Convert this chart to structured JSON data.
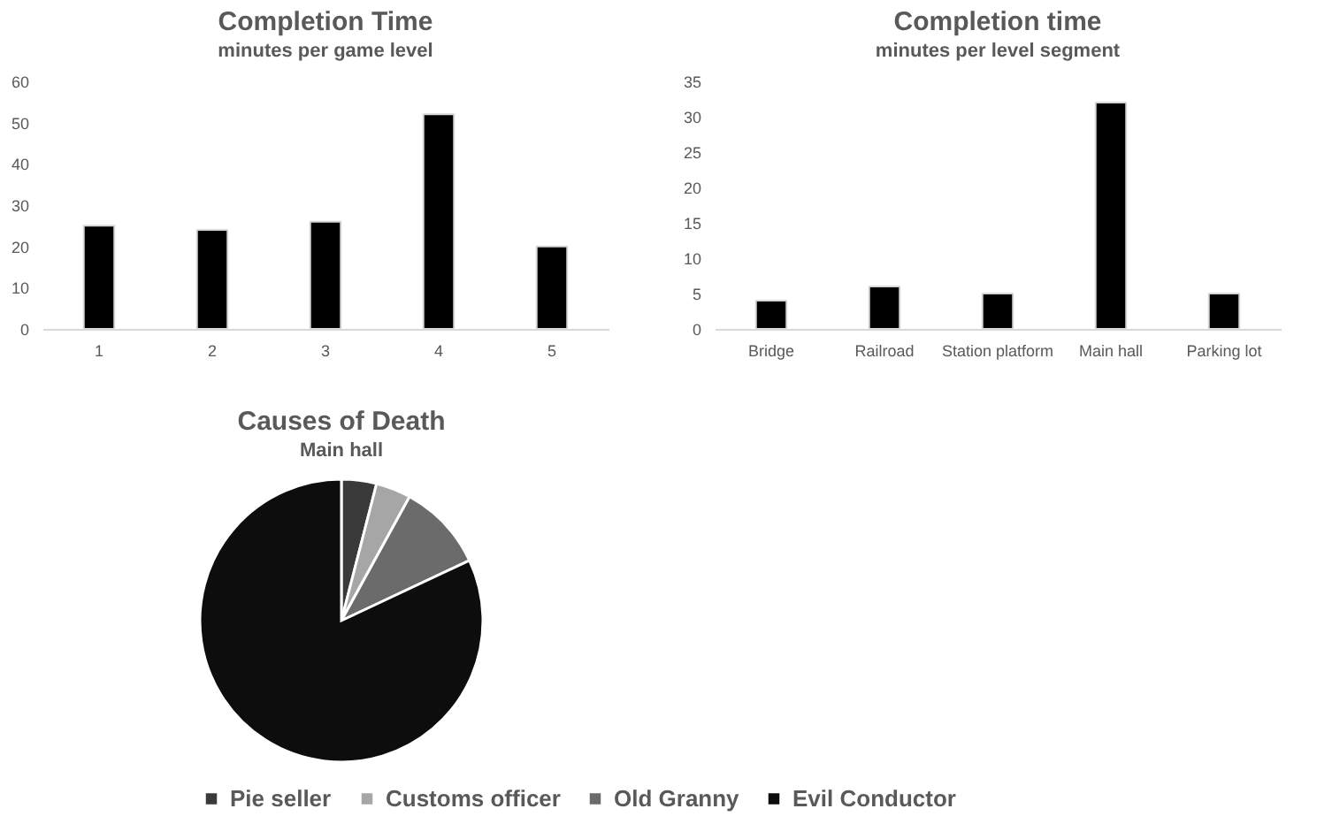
{
  "chart_data": [
    {
      "type": "bar",
      "title": "Completion Time",
      "subtitle": "minutes per game level",
      "categories": [
        "1",
        "2",
        "3",
        "4",
        "5"
      ],
      "values": [
        25,
        24,
        26,
        52,
        20
      ],
      "color": "#000000",
      "ylim": [
        0,
        60
      ],
      "yticks": [
        0,
        10,
        20,
        30,
        40,
        50,
        60
      ],
      "grid": false
    },
    {
      "type": "bar",
      "title": "Completion time",
      "subtitle": "minutes per level segment",
      "categories": [
        "Bridge",
        "Railroad",
        "Station platform",
        "Main hall",
        "Parking lot"
      ],
      "values": [
        4,
        6,
        5,
        32,
        5
      ],
      "color": "#000000",
      "ylim": [
        0,
        35
      ],
      "yticks": [
        0,
        5,
        10,
        15,
        20,
        25,
        30,
        35
      ],
      "grid": false
    },
    {
      "type": "pie",
      "title": "Causes of Death",
      "subtitle": "Main hall",
      "categories": [
        "Pie seller",
        "Customs officer",
        "Old Granny",
        "Evil Conductor"
      ],
      "values": [
        4,
        4,
        10,
        82
      ],
      "colors": [
        "#3a3a3a",
        "#a6a6a6",
        "#6b6b6b",
        "#0d0d0d"
      ],
      "legend": "bottom"
    }
  ]
}
